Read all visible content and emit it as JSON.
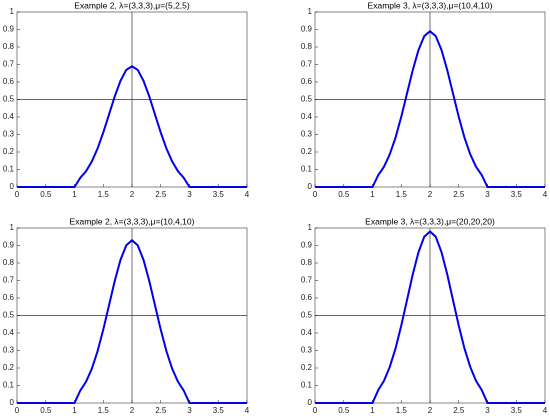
{
  "chart_data": [
    {
      "type": "line",
      "title": "Example 2, λ=(3,3,3),μ=(5,2,5)",
      "color": "#0000ee",
      "x": [
        0,
        0.5,
        1,
        1.1,
        1.2,
        1.3,
        1.4,
        1.5,
        1.6,
        1.7,
        1.8,
        1.9,
        2,
        2.1,
        2.2,
        2.3,
        2.4,
        2.5,
        2.6,
        2.7,
        2.8,
        2.9,
        3,
        3.5,
        4
      ],
      "values": [
        0,
        0,
        0,
        0.052,
        0.09,
        0.145,
        0.219,
        0.311,
        0.414,
        0.518,
        0.607,
        0.669,
        0.69,
        0.669,
        0.607,
        0.518,
        0.414,
        0.311,
        0.219,
        0.145,
        0.09,
        0.052,
        0,
        0,
        0
      ],
      "xlim": [
        0,
        4
      ],
      "ylim": [
        0,
        1
      ],
      "xticks": [
        0,
        0.5,
        1,
        1.5,
        2,
        2.5,
        3,
        3.5,
        4
      ],
      "yticks": [
        0,
        0.1,
        0.2,
        0.3,
        0.4,
        0.5,
        0.6,
        0.7,
        0.8,
        0.9,
        1
      ],
      "hlines": [
        0.5
      ],
      "vlines": [
        2
      ]
    },
    {
      "type": "line",
      "title": "Example 3, λ=(3,3,3),μ=(10,4,10)",
      "color": "#0000ee",
      "x": [
        0,
        0.5,
        1,
        1.1,
        1.2,
        1.3,
        1.4,
        1.5,
        1.6,
        1.7,
        1.8,
        1.9,
        2,
        2.1,
        2.2,
        2.3,
        2.4,
        2.5,
        2.6,
        2.7,
        2.8,
        2.9,
        3,
        3.5,
        4
      ],
      "values": [
        0,
        0,
        0,
        0.068,
        0.116,
        0.187,
        0.282,
        0.401,
        0.534,
        0.668,
        0.783,
        0.862,
        0.89,
        0.862,
        0.783,
        0.668,
        0.534,
        0.401,
        0.282,
        0.187,
        0.116,
        0.068,
        0,
        0,
        0
      ],
      "xlim": [
        0,
        4
      ],
      "ylim": [
        0,
        1
      ],
      "xticks": [
        0,
        0.5,
        1,
        1.5,
        2,
        2.5,
        3,
        3.5,
        4
      ],
      "yticks": [
        0,
        0.1,
        0.2,
        0.3,
        0.4,
        0.5,
        0.6,
        0.7,
        0.8,
        0.9,
        1
      ],
      "hlines": [
        0.5
      ],
      "vlines": [
        2
      ]
    },
    {
      "type": "line",
      "title": "Example 2, λ=(3,3,3),μ=(10,4,10)",
      "color": "#0000ee",
      "x": [
        0,
        0.5,
        1,
        1.1,
        1.2,
        1.3,
        1.4,
        1.5,
        1.6,
        1.7,
        1.8,
        1.9,
        2,
        2.1,
        2.2,
        2.3,
        2.4,
        2.5,
        2.6,
        2.7,
        2.8,
        2.9,
        3,
        3.5,
        4
      ],
      "values": [
        0,
        0,
        0,
        0.071,
        0.121,
        0.195,
        0.295,
        0.419,
        0.558,
        0.698,
        0.818,
        0.901,
        0.93,
        0.901,
        0.818,
        0.698,
        0.558,
        0.419,
        0.295,
        0.195,
        0.121,
        0.071,
        0,
        0,
        0
      ],
      "xlim": [
        0,
        4
      ],
      "ylim": [
        0,
        1
      ],
      "xticks": [
        0,
        0.5,
        1,
        1.5,
        2,
        2.5,
        3,
        3.5,
        4
      ],
      "yticks": [
        0,
        0.1,
        0.2,
        0.3,
        0.4,
        0.5,
        0.6,
        0.7,
        0.8,
        0.9,
        1
      ],
      "hlines": [
        0.5
      ],
      "vlines": [
        2
      ]
    },
    {
      "type": "line",
      "title": "Example 3, λ=(3,3,3),μ=(20,20,20)",
      "color": "#0000ee",
      "x": [
        0,
        0.5,
        1,
        1.1,
        1.2,
        1.3,
        1.4,
        1.5,
        1.6,
        1.7,
        1.8,
        1.9,
        2,
        2.1,
        2.2,
        2.3,
        2.4,
        2.5,
        2.6,
        2.7,
        2.8,
        2.9,
        3,
        3.5,
        4
      ],
      "values": [
        0,
        0,
        0,
        0.074,
        0.127,
        0.206,
        0.311,
        0.442,
        0.588,
        0.735,
        0.862,
        0.95,
        0.98,
        0.95,
        0.862,
        0.735,
        0.588,
        0.442,
        0.311,
        0.206,
        0.127,
        0.074,
        0,
        0,
        0
      ],
      "xlim": [
        0,
        4
      ],
      "ylim": [
        0,
        1
      ],
      "xticks": [
        0,
        0.5,
        1,
        1.5,
        2,
        2.5,
        3,
        3.5,
        4
      ],
      "yticks": [
        0,
        0.1,
        0.2,
        0.3,
        0.4,
        0.5,
        0.6,
        0.7,
        0.8,
        0.9,
        1
      ],
      "hlines": [
        0.5
      ],
      "vlines": [
        2
      ]
    }
  ]
}
